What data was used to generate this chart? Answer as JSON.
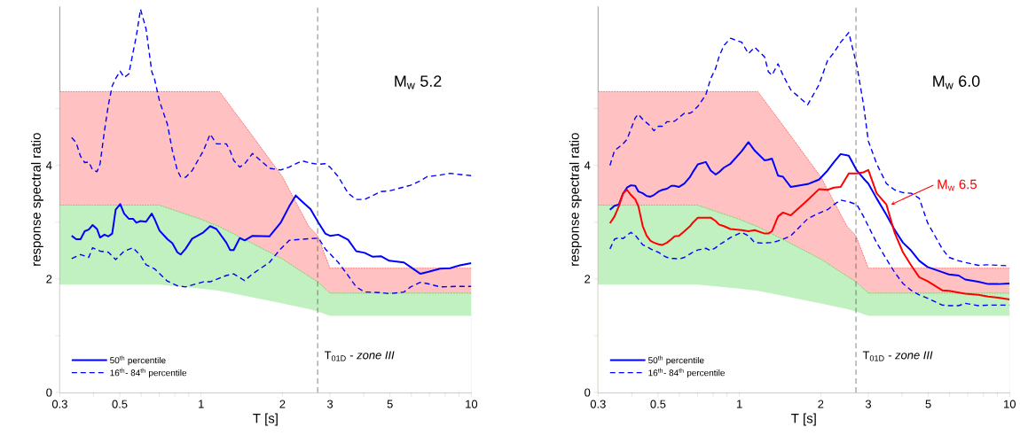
{
  "chart_data": [
    {
      "type": "line",
      "title": "M$_{w}$ 5.2",
      "xlabel": "T [s]",
      "ylabel": "response spectral ratio",
      "log": "x",
      "legend": "bottom left",
      "xlim": [
        0.3,
        10
      ],
      "ylim": [
        0,
        6.8
      ],
      "xticks": [
        0.3,
        {
          "value": 0.4,
          "label": null
        },
        0.5,
        {
          "value": 0.6,
          "label": null
        },
        {
          "value": 0.7,
          "label": null
        },
        {
          "value": 0.8,
          "label": null
        },
        {
          "value": 0.9,
          "label": null
        },
        1,
        2,
        3,
        {
          "value": 4,
          "label": null
        },
        5,
        {
          "value": 6,
          "label": null
        },
        {
          "value": 7,
          "label": null
        },
        {
          "value": 8,
          "label": null
        },
        {
          "value": 9,
          "label": null
        },
        10
      ],
      "yticks": [
        0,
        {
          "value": 1,
          "label": null
        },
        2,
        {
          "value": 3,
          "label": null
        },
        4,
        {
          "value": 5,
          "label": null
        }
      ],
      "x": [
        0.332,
        0.345,
        0.358,
        0.371,
        0.384,
        0.397,
        0.412,
        0.423,
        0.439,
        0.454,
        0.469,
        0.483,
        0.502,
        0.519,
        0.54,
        0.56,
        0.576,
        0.597,
        0.626,
        0.657,
        0.672,
        0.702,
        0.751,
        0.783,
        0.817,
        0.84,
        0.876,
        0.927,
        1.02,
        1.08,
        1.14,
        1.24,
        1.28,
        1.32,
        1.39,
        1.45,
        1.55,
        1.79,
        1.97,
        2.12,
        2.24,
        2.37,
        2.54,
        2.72,
        2.88,
        3.0,
        3.22,
        3.5,
        3.75,
        4.03,
        4.32,
        4.63,
        4.97,
        5.63,
        5.96,
        6.48,
        6.85,
        7.66,
        8.34,
        9.07,
        10
      ],
      "series": [
        {
          "type": "area",
          "color": "#ff3030",
          "x": [
            0.3,
            0.7,
            1.0,
            1.17,
            1.5,
            2.0,
            2.5,
            2.7,
            3.0,
            10
          ],
          "values": [
            5.3,
            5.3,
            5.3,
            5.3,
            4.61,
            3.8,
            2.93,
            2.76,
            2.19,
            2.19
          ]
        },
        {
          "type": "area",
          "color": "#30d030",
          "x": [
            0.3,
            0.7,
            1.0,
            1.17,
            1.5,
            2.0,
            2.5,
            2.7,
            3.0,
            10
          ],
          "values": [
            3.3,
            3.3,
            3.05,
            2.92,
            2.66,
            2.35,
            2.05,
            1.95,
            1.75,
            1.75
          ]
        },
        {
          "type": "area",
          "color": "#ffffff",
          "x": [
            0.3,
            0.7,
            1.0,
            1.17,
            1.5,
            2.0,
            2.5,
            2.7,
            3.0,
            10
          ],
          "values": [
            1.9,
            1.9,
            1.83,
            1.79,
            1.69,
            1.57,
            1.47,
            1.43,
            1.35,
            1.35
          ]
        },
        {
          "name": "50$^{th}$ percentile",
          "color": "#0000ff",
          "line_style": "solid",
          "values": [
            2.76,
            2.7,
            2.7,
            2.84,
            2.87,
            2.95,
            2.88,
            2.73,
            2.78,
            2.75,
            2.8,
            3.22,
            3.32,
            3.15,
            3.06,
            3.06,
            2.99,
            3.02,
            3.01,
            3.15,
            3.06,
            2.85,
            2.7,
            2.63,
            2.47,
            2.43,
            2.53,
            2.71,
            2.82,
            2.93,
            2.88,
            2.64,
            2.51,
            2.51,
            2.72,
            2.68,
            2.76,
            2.75,
            2.99,
            3.28,
            3.47,
            3.36,
            3.23,
            2.99,
            2.8,
            2.76,
            2.78,
            2.69,
            2.49,
            2.46,
            2.39,
            2.4,
            2.32,
            2.29,
            2.21,
            2.09,
            2.12,
            2.18,
            2.19,
            2.24,
            2.28
          ]
        },
        {
          "name": "16$^{th}$- 84$^{th}$ percentile",
          "color": "#0000ff",
          "line_style": "dashed",
          "values": [
            4.49,
            4.4,
            4.16,
            4.05,
            4.06,
            3.92,
            3.89,
            4.03,
            4.61,
            5.07,
            5.4,
            5.53,
            5.66,
            5.55,
            5.61,
            5.99,
            6.28,
            6.75,
            6.4,
            5.65,
            5.53,
            5.13,
            4.72,
            4.26,
            3.91,
            3.8,
            3.79,
            3.91,
            4.26,
            4.55,
            4.38,
            4.38,
            4.26,
            4.09,
            3.97,
            4.03,
            4.21,
            3.95,
            3.92,
            3.97,
            4.03,
            4.08,
            4.04,
            4.02,
            4.03,
            3.97,
            3.8,
            3.51,
            3.4,
            3.4,
            3.47,
            3.54,
            3.55,
            3.62,
            3.65,
            3.73,
            3.8,
            3.83,
            3.86,
            3.84,
            3.82
          ]
        },
        {
          "color": "#0000ff",
          "line_style": "dashed",
          "x": [
            0.332,
            0.358,
            0.384,
            0.397,
            0.423,
            0.454,
            0.483,
            0.519,
            0.56,
            0.597,
            0.626,
            0.672,
            0.751,
            0.817,
            0.876,
            1.02,
            1.08,
            1.24,
            1.32,
            1.45,
            1.55,
            1.79,
            1.97,
            2.12,
            2.37,
            2.72,
            2.88,
            3.22,
            3.5,
            3.75,
            4.03,
            4.63,
            4.97,
            5.63,
            5.96,
            6.48,
            6.85,
            7.66,
            9.07,
            10
          ],
          "values": [
            2.36,
            2.43,
            2.38,
            2.55,
            2.49,
            2.47,
            2.34,
            2.49,
            2.55,
            2.41,
            2.25,
            2.18,
            1.96,
            1.88,
            1.86,
            1.95,
            1.95,
            2.06,
            2.09,
            1.97,
            2.09,
            2.29,
            2.53,
            2.68,
            2.7,
            2.72,
            2.53,
            2.29,
            2.06,
            1.86,
            1.77,
            1.76,
            1.74,
            1.77,
            1.86,
            1.94,
            1.92,
            1.86,
            1.87,
            1.87
          ]
        }
      ],
      "ref_lines": [
        {
          "axis": "x",
          "value": 2.7,
          "label": "T$_{01D}$ - *zone III*",
          "line_style": "dashed"
        }
      ]
    },
    {
      "type": "line",
      "title": "M$_{w}$ 6.0",
      "xlabel": "T [s]",
      "ylabel": "response spectral ratio",
      "log": "x",
      "legend": "bottom left",
      "xlim": [
        0.3,
        10
      ],
      "ylim": [
        0,
        6.8
      ],
      "xticks": [
        0.3,
        {
          "value": 0.4,
          "label": null
        },
        0.5,
        {
          "value": 0.6,
          "label": null
        },
        {
          "value": 0.7,
          "label": null
        },
        {
          "value": 0.8,
          "label": null
        },
        {
          "value": 0.9,
          "label": null
        },
        1,
        2,
        3,
        {
          "value": 4,
          "label": null
        },
        5,
        {
          "value": 6,
          "label": null
        },
        {
          "value": 7,
          "label": null
        },
        {
          "value": 8,
          "label": null
        },
        {
          "value": 9,
          "label": null
        },
        10
      ],
      "yticks": [
        0,
        {
          "value": 1,
          "label": null
        },
        2,
        {
          "value": 3,
          "label": null
        },
        4,
        {
          "value": 5,
          "label": null
        }
      ],
      "x": [
        0.332,
        0.345,
        0.358,
        0.371,
        0.384,
        0.397,
        0.412,
        0.423,
        0.439,
        0.454,
        0.469,
        0.483,
        0.502,
        0.519,
        0.54,
        0.56,
        0.576,
        0.597,
        0.626,
        0.657,
        0.672,
        0.702,
        0.751,
        0.783,
        0.817,
        0.84,
        0.876,
        0.927,
        1.02,
        1.08,
        1.14,
        1.24,
        1.28,
        1.32,
        1.39,
        1.45,
        1.55,
        1.79,
        1.97,
        2.12,
        2.24,
        2.37,
        2.54,
        2.72,
        2.88,
        3.0,
        3.22,
        3.5,
        3.75,
        4.03,
        4.32,
        4.63,
        4.97,
        5.63,
        5.96,
        6.48,
        6.85,
        7.66,
        8.34,
        9.07,
        10
      ],
      "series": [
        {
          "type": "area",
          "color": "#ff3030",
          "x": [
            0.3,
            0.7,
            1.0,
            1.17,
            1.5,
            2.0,
            2.5,
            2.7,
            3.0,
            10
          ],
          "values": [
            5.3,
            5.3,
            5.3,
            5.3,
            4.61,
            3.8,
            2.93,
            2.76,
            2.19,
            2.19
          ]
        },
        {
          "type": "area",
          "color": "#30d030",
          "x": [
            0.3,
            0.7,
            1.0,
            1.17,
            1.5,
            2.0,
            2.5,
            2.7,
            3.0,
            10
          ],
          "values": [
            3.3,
            3.3,
            3.05,
            2.92,
            2.66,
            2.35,
            2.05,
            1.95,
            1.75,
            1.75
          ]
        },
        {
          "type": "area",
          "color": "#ffffff",
          "x": [
            0.3,
            0.7,
            1.0,
            1.17,
            1.5,
            2.0,
            2.5,
            2.7,
            3.0,
            10
          ],
          "values": [
            1.9,
            1.9,
            1.83,
            1.79,
            1.69,
            1.57,
            1.47,
            1.43,
            1.35,
            1.35
          ]
        },
        {
          "name": "50$^{th}$ percentile",
          "color": "#0000ff",
          "line_style": "solid",
          "values": [
            3.22,
            3.29,
            3.31,
            3.5,
            3.61,
            3.65,
            3.64,
            3.54,
            3.51,
            3.46,
            3.45,
            3.48,
            3.54,
            3.57,
            3.59,
            3.64,
            3.64,
            3.62,
            3.68,
            3.8,
            3.88,
            4.02,
            4.06,
            3.91,
            3.84,
            3.88,
            3.96,
            4.03,
            4.25,
            4.41,
            4.26,
            4.09,
            4.1,
            4.12,
            3.82,
            3.8,
            3.62,
            3.67,
            3.75,
            3.91,
            4.06,
            4.2,
            4.17,
            3.91,
            3.77,
            3.68,
            3.42,
            3.13,
            2.87,
            2.64,
            2.5,
            2.32,
            2.21,
            2.12,
            2.08,
            2.06,
            1.99,
            1.95,
            1.91,
            1.91,
            1.92
          ]
        },
        {
          "name": "16$^{th}$- 84$^{th}$ percentile",
          "color": "#0000ff",
          "line_style": "dashed",
          "values": [
            4.0,
            4.26,
            4.32,
            4.38,
            4.46,
            4.64,
            4.84,
            4.9,
            4.81,
            4.75,
            4.69,
            4.61,
            4.69,
            4.69,
            4.77,
            4.77,
            4.78,
            4.84,
            4.92,
            4.92,
            4.95,
            5.04,
            5.24,
            5.53,
            5.71,
            5.91,
            6.11,
            6.24,
            6.17,
            5.97,
            6.08,
            5.91,
            5.65,
            5.59,
            5.79,
            5.59,
            5.33,
            5.07,
            5.42,
            5.85,
            5.99,
            6.17,
            6.34,
            5.76,
            5.07,
            4.43,
            4.03,
            3.68,
            3.57,
            3.52,
            3.51,
            3.42,
            2.99,
            2.53,
            2.38,
            2.32,
            2.29,
            2.24,
            2.25,
            2.24,
            2.23
          ]
        },
        {
          "color": "#0000ff",
          "line_style": "dashed",
          "values": [
            2.53,
            2.7,
            2.73,
            2.71,
            2.77,
            2.82,
            2.77,
            2.7,
            2.6,
            2.57,
            2.53,
            2.5,
            2.47,
            2.42,
            2.38,
            2.36,
            2.36,
            2.35,
            2.38,
            2.44,
            2.47,
            2.51,
            2.54,
            2.5,
            2.55,
            2.6,
            2.65,
            2.73,
            2.82,
            2.76,
            2.64,
            2.63,
            2.64,
            2.64,
            2.67,
            2.7,
            2.76,
            3.06,
            3.16,
            3.22,
            3.31,
            3.39,
            3.36,
            3.31,
            3.1,
            2.93,
            2.64,
            2.35,
            2.12,
            1.92,
            1.8,
            1.72,
            1.66,
            1.54,
            1.53,
            1.53,
            1.57,
            1.53,
            1.54,
            1.54,
            1.54
          ]
        },
        {
          "color": "#ff0000",
          "line_style": "solid",
          "values": [
            2.98,
            3.1,
            3.28,
            3.51,
            3.57,
            3.48,
            3.4,
            3.28,
            2.93,
            2.76,
            2.67,
            2.64,
            2.61,
            2.6,
            2.64,
            2.7,
            2.75,
            2.76,
            2.84,
            2.93,
            2.99,
            3.08,
            3.08,
            3.08,
            3.02,
            2.96,
            2.93,
            2.88,
            2.86,
            2.84,
            2.86,
            2.8,
            2.8,
            2.84,
            3.1,
            3.17,
            3.12,
            3.39,
            3.58,
            3.57,
            3.61,
            3.62,
            3.86,
            3.86,
            3.88,
            3.92,
            3.51,
            3.31,
            2.82,
            2.47,
            2.24,
            2.03,
            1.96,
            1.8,
            1.79,
            1.76,
            1.74,
            1.72,
            1.69,
            1.67,
            1.64
          ]
        }
      ],
      "ref_lines": [
        {
          "axis": "x",
          "value": 2.7,
          "label": "T$_{01D}$ - *zone III*",
          "line_style": "dashed"
        }
      ],
      "annotations": [
        {
          "text": "M$_{w}$ 6.5",
          "x": 3.64,
          "y": 3.31
        }
      ]
    }
  ]
}
